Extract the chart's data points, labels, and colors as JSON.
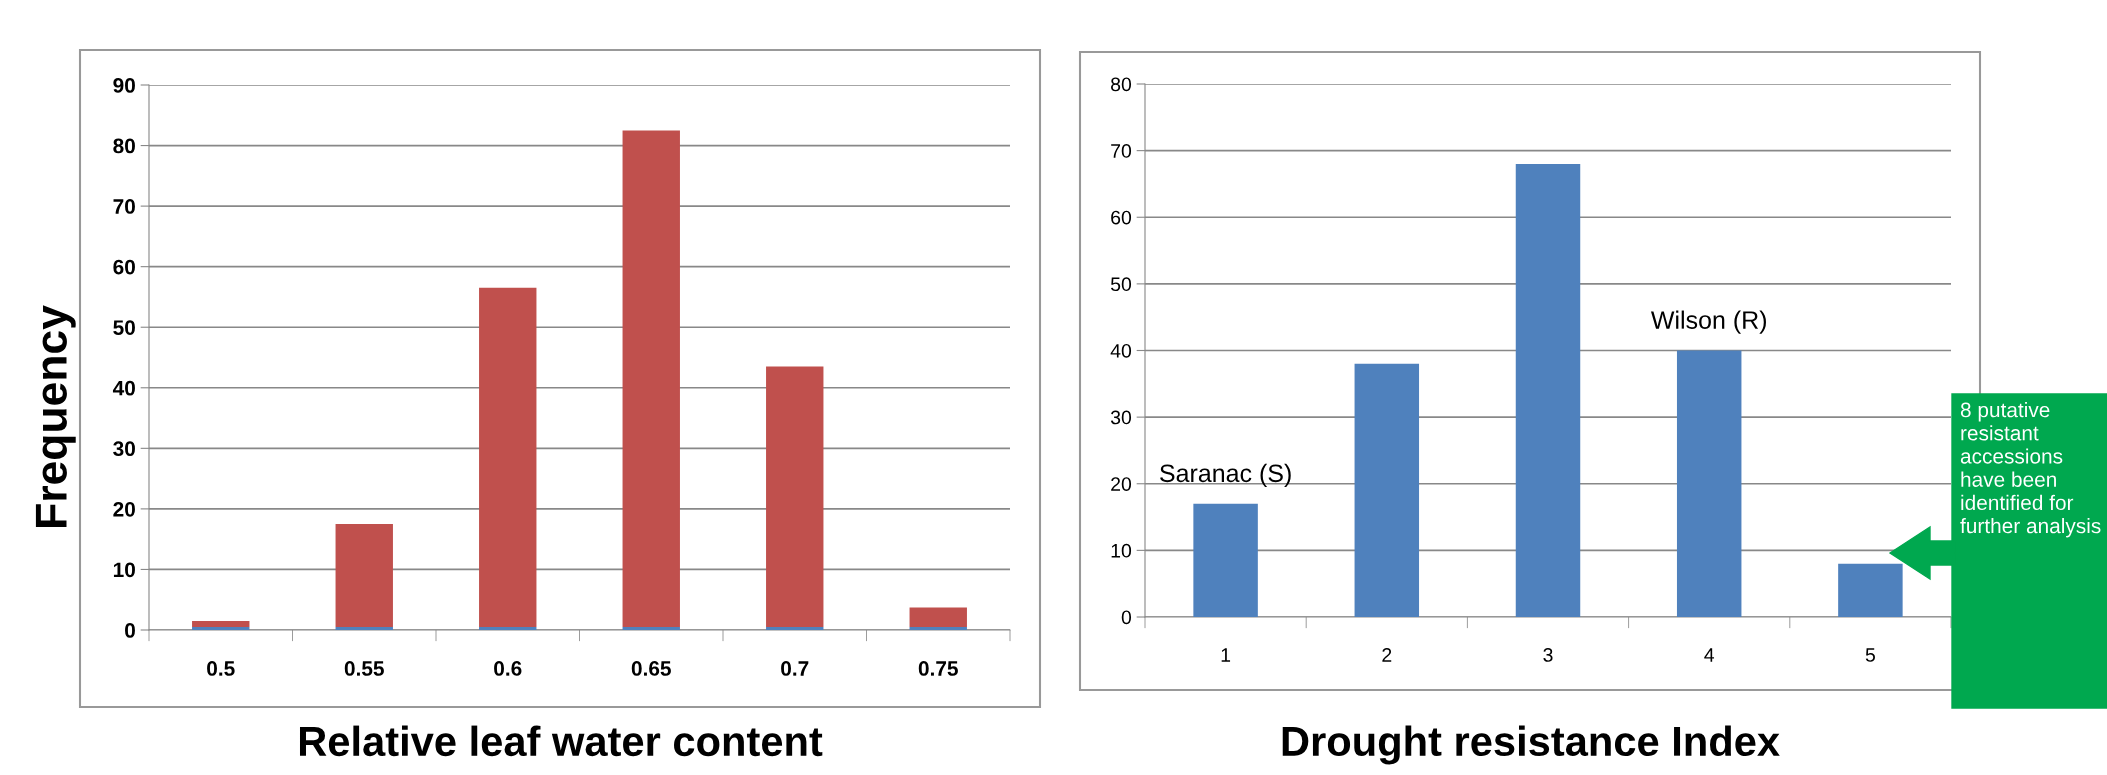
{
  "chart_data": [
    {
      "type": "bar",
      "stacked": true,
      "categories": [
        "0.5",
        "0.55",
        "0.6",
        "0.65",
        "0.7",
        "0.75"
      ],
      "series": [
        {
          "color": "#4f81bd",
          "values": [
            0.5,
            0.5,
            0.5,
            0.5,
            0.5,
            0.5
          ]
        },
        {
          "color": "#c0504d",
          "values": [
            1.0,
            17,
            56,
            82,
            43,
            3.2
          ]
        }
      ],
      "ylim": [
        0,
        90
      ],
      "yticks": [
        0,
        10,
        20,
        30,
        40,
        50,
        60,
        70,
        80,
        90
      ],
      "grid": "y",
      "xlabel": "Relative leaf water content",
      "ylabel": "Frequency"
    },
    {
      "type": "bar",
      "categories": [
        "1",
        "2",
        "3",
        "4",
        "5"
      ],
      "series": [
        {
          "color": "#4f81bd",
          "values": [
            17,
            38,
            68,
            40,
            8
          ]
        }
      ],
      "ylim": [
        0,
        80
      ],
      "yticks": [
        0,
        10,
        20,
        30,
        40,
        50,
        60,
        70,
        80
      ],
      "grid": "y",
      "xlabel": "Drought resistance Index",
      "annotations": [
        {
          "text": "Saranac (S)",
          "x": "1",
          "y": 17
        },
        {
          "text": "Wilson (R)",
          "x": "4",
          "y": 40
        },
        "8 putative resistant accessions have been identified for further analysis"
      ]
    }
  ]
}
